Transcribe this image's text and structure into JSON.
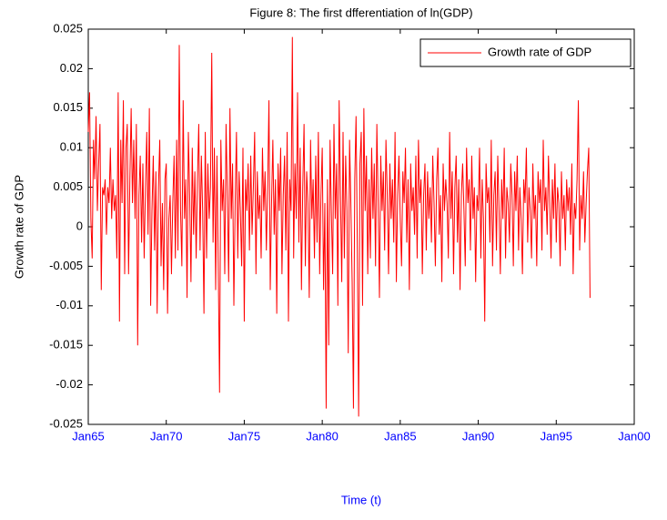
{
  "chart_data": {
    "type": "line",
    "title": "Figure 8: The first dfferentiation of ln(GDP)",
    "xlabel": "Time (t)",
    "ylabel": "Growth rate of GDP",
    "xlim": [
      "1965-01",
      "2000-01"
    ],
    "xticks": [
      {
        "value": "1965-01",
        "label": "Jan65"
      },
      {
        "value": "1970-01",
        "label": "Jan70"
      },
      {
        "value": "1975-01",
        "label": "Jan75"
      },
      {
        "value": "1980-01",
        "label": "Jan80"
      },
      {
        "value": "1985-01",
        "label": "Jan85"
      },
      {
        "value": "1990-01",
        "label": "Jan90"
      },
      {
        "value": "1995-01",
        "label": "Jan95"
      },
      {
        "value": "2000-01",
        "label": "Jan00"
      }
    ],
    "ylim": [
      -0.025,
      0.025
    ],
    "yticks": [
      -0.025,
      -0.02,
      -0.015,
      -0.01,
      -0.005,
      0,
      0.005,
      0.01,
      0.015,
      0.02,
      0.025
    ],
    "legend": "top-right",
    "x": [
      "1965-01",
      "1965-02",
      "1965-03",
      "1965-04",
      "1965-05",
      "1965-06",
      "1965-07",
      "1965-08",
      "1965-09",
      "1965-10",
      "1965-11",
      "1965-12",
      "1966-01",
      "1966-02",
      "1966-03",
      "1966-04",
      "1966-05",
      "1966-06",
      "1966-07",
      "1966-08",
      "1966-09",
      "1966-10",
      "1966-11",
      "1966-12",
      "1967-01",
      "1967-02",
      "1967-03",
      "1967-04",
      "1967-05",
      "1967-06",
      "1967-07",
      "1967-08",
      "1967-09",
      "1967-10",
      "1967-11",
      "1967-12",
      "1968-01",
      "1968-02",
      "1968-03",
      "1968-04",
      "1968-05",
      "1968-06",
      "1968-07",
      "1968-08",
      "1968-09",
      "1968-10",
      "1968-11",
      "1968-12",
      "1969-01",
      "1969-02",
      "1969-03",
      "1969-04",
      "1969-05",
      "1969-06",
      "1969-07",
      "1969-08",
      "1969-09",
      "1969-10",
      "1969-11",
      "1969-12",
      "1970-01",
      "1970-02",
      "1970-03",
      "1970-04",
      "1970-05",
      "1970-06",
      "1970-07",
      "1970-08",
      "1970-09",
      "1970-10",
      "1970-11",
      "1970-12",
      "1971-01",
      "1971-02",
      "1971-03",
      "1971-04",
      "1971-05",
      "1971-06",
      "1971-07",
      "1971-08",
      "1971-09",
      "1971-10",
      "1971-11",
      "1971-12",
      "1972-01",
      "1972-02",
      "1972-03",
      "1972-04",
      "1972-05",
      "1972-06",
      "1972-07",
      "1972-08",
      "1972-09",
      "1972-10",
      "1972-11",
      "1972-12",
      "1973-01",
      "1973-02",
      "1973-03",
      "1973-04",
      "1973-05",
      "1973-06",
      "1973-07",
      "1973-08",
      "1973-09",
      "1973-10",
      "1973-11",
      "1973-12",
      "1974-01",
      "1974-02",
      "1974-03",
      "1974-04",
      "1974-05",
      "1974-06",
      "1974-07",
      "1974-08",
      "1974-09",
      "1974-10",
      "1974-11",
      "1974-12",
      "1975-01",
      "1975-02",
      "1975-03",
      "1975-04",
      "1975-05",
      "1975-06",
      "1975-07",
      "1975-08",
      "1975-09",
      "1975-10",
      "1975-11",
      "1975-12",
      "1976-01",
      "1976-02",
      "1976-03",
      "1976-04",
      "1976-05",
      "1976-06",
      "1976-07",
      "1976-08",
      "1976-09",
      "1976-10",
      "1976-11",
      "1976-12",
      "1977-01",
      "1977-02",
      "1977-03",
      "1977-04",
      "1977-05",
      "1977-06",
      "1977-07",
      "1977-08",
      "1977-09",
      "1977-10",
      "1977-11",
      "1977-12",
      "1978-01",
      "1978-02",
      "1978-03",
      "1978-04",
      "1978-05",
      "1978-06",
      "1978-07",
      "1978-08",
      "1978-09",
      "1978-10",
      "1978-11",
      "1978-12",
      "1979-01",
      "1979-02",
      "1979-03",
      "1979-04",
      "1979-05",
      "1979-06",
      "1979-07",
      "1979-08",
      "1979-09",
      "1979-10",
      "1979-11",
      "1979-12",
      "1980-01",
      "1980-02",
      "1980-03",
      "1980-04",
      "1980-05",
      "1980-06",
      "1980-07",
      "1980-08",
      "1980-09",
      "1980-10",
      "1980-11",
      "1980-12",
      "1981-01",
      "1981-02",
      "1981-03",
      "1981-04",
      "1981-05",
      "1981-06",
      "1981-07",
      "1981-08",
      "1981-09",
      "1981-10",
      "1981-11",
      "1981-12",
      "1982-01",
      "1982-02",
      "1982-03",
      "1982-04",
      "1982-05",
      "1982-06",
      "1982-07",
      "1982-08",
      "1982-09",
      "1982-10",
      "1982-11",
      "1982-12",
      "1983-01",
      "1983-02",
      "1983-03",
      "1983-04",
      "1983-05",
      "1983-06",
      "1983-07",
      "1983-08",
      "1983-09",
      "1983-10",
      "1983-11",
      "1983-12",
      "1984-01",
      "1984-02",
      "1984-03",
      "1984-04",
      "1984-05",
      "1984-06",
      "1984-07",
      "1984-08",
      "1984-09",
      "1984-10",
      "1984-11",
      "1984-12",
      "1985-01",
      "1985-02",
      "1985-03",
      "1985-04",
      "1985-05",
      "1985-06",
      "1985-07",
      "1985-08",
      "1985-09",
      "1985-10",
      "1985-11",
      "1985-12",
      "1986-01",
      "1986-02",
      "1986-03",
      "1986-04",
      "1986-05",
      "1986-06",
      "1986-07",
      "1986-08",
      "1986-09",
      "1986-10",
      "1986-11",
      "1986-12",
      "1987-01",
      "1987-02",
      "1987-03",
      "1987-04",
      "1987-05",
      "1987-06",
      "1987-07",
      "1987-08",
      "1987-09",
      "1987-10",
      "1987-11",
      "1987-12",
      "1988-01",
      "1988-02",
      "1988-03",
      "1988-04",
      "1988-05",
      "1988-06",
      "1988-07",
      "1988-08",
      "1988-09",
      "1988-10",
      "1988-11",
      "1988-12",
      "1989-01",
      "1989-02",
      "1989-03",
      "1989-04",
      "1989-05",
      "1989-06",
      "1989-07",
      "1989-08",
      "1989-09",
      "1989-10",
      "1989-11",
      "1989-12",
      "1990-01",
      "1990-02",
      "1990-03",
      "1990-04",
      "1990-05",
      "1990-06",
      "1990-07",
      "1990-08",
      "1990-09",
      "1990-10",
      "1990-11",
      "1990-12",
      "1991-01",
      "1991-02",
      "1991-03",
      "1991-04",
      "1991-05",
      "1991-06",
      "1991-07",
      "1991-08",
      "1991-09",
      "1991-10",
      "1991-11",
      "1991-12",
      "1992-01",
      "1992-02",
      "1992-03",
      "1992-04",
      "1992-05",
      "1992-06",
      "1992-07",
      "1992-08",
      "1992-09",
      "1992-10",
      "1992-11",
      "1992-12",
      "1993-01",
      "1993-02",
      "1993-03",
      "1993-04",
      "1993-05",
      "1993-06",
      "1993-07",
      "1993-08",
      "1993-09",
      "1993-10",
      "1993-11",
      "1993-12",
      "1994-01",
      "1994-02",
      "1994-03",
      "1994-04",
      "1994-05",
      "1994-06",
      "1994-07",
      "1994-08",
      "1994-09",
      "1994-10",
      "1994-11",
      "1994-12",
      "1995-01",
      "1995-02",
      "1995-03",
      "1995-04",
      "1995-05",
      "1995-06",
      "1995-07",
      "1995-08",
      "1995-09",
      "1995-10",
      "1995-11",
      "1995-12",
      "1996-01",
      "1996-02",
      "1996-03",
      "1996-04",
      "1996-05",
      "1996-06",
      "1996-07",
      "1996-08",
      "1996-09",
      "1996-10",
      "1996-11",
      "1996-12",
      "1997-01",
      "1997-02",
      "1997-03"
    ],
    "series": [
      {
        "name": "Growth rate of GDP",
        "color": "#ff0000",
        "values": [
          0.012,
          0.017,
          0.001,
          -0.004,
          0.011,
          0.006,
          0.014,
          0.002,
          0.008,
          0.013,
          -0.008,
          0.005,
          0.004,
          0.006,
          -0.001,
          0.005,
          0.003,
          0.01,
          0.001,
          0.006,
          0.002,
          0.004,
          -0.004,
          0.017,
          -0.012,
          0.011,
          0.003,
          0.016,
          -0.006,
          0.01,
          0.013,
          -0.006,
          0.006,
          0.015,
          0.003,
          0.011,
          0.001,
          0.013,
          -0.015,
          0.004,
          0.009,
          -0.002,
          0.008,
          -0.004,
          0.005,
          0.012,
          -0.001,
          0.015,
          -0.01,
          0.002,
          0.009,
          -0.003,
          0.007,
          -0.011,
          0.005,
          0.011,
          -0.005,
          0.003,
          -0.008,
          0.006,
          0.008,
          -0.011,
          0.001,
          0.004,
          -0.006,
          0.003,
          0.009,
          -0.004,
          0.011,
          -0.003,
          0.023,
          0.002,
          -0.005,
          0.016,
          0.001,
          0.006,
          -0.009,
          0.012,
          0.004,
          -0.007,
          0.01,
          -0.001,
          0.007,
          -0.004,
          0.006,
          0.013,
          -0.003,
          0.009,
          0.002,
          -0.011,
          0.012,
          -0.004,
          0.008,
          0.001,
          0.005,
          0.022,
          -0.002,
          0.01,
          -0.008,
          0.009,
          -0.005,
          -0.021,
          0.011,
          0.002,
          0.006,
          -0.006,
          0.013,
          0.004,
          -0.007,
          0.015,
          0.001,
          0.008,
          -0.01,
          0.003,
          0.012,
          -0.004,
          0.007,
          0.002,
          -0.005,
          0.01,
          -0.012,
          0.006,
          0.002,
          0.008,
          -0.003,
          0.009,
          -0.001,
          0.005,
          0.012,
          -0.006,
          0.007,
          0.001,
          0.004,
          -0.004,
          0.01,
          0.002,
          0.007,
          -0.003,
          0.005,
          0.016,
          -0.008,
          0.003,
          0.011,
          -0.001,
          0.006,
          -0.011,
          0.008,
          0.002,
          0.01,
          -0.006,
          0.004,
          0.009,
          -0.003,
          0.012,
          -0.012,
          0.006,
          0.002,
          0.024,
          -0.004,
          0.008,
          0.001,
          0.017,
          -0.002,
          0.01,
          -0.008,
          0.005,
          0.013,
          -0.005,
          0.007,
          0.003,
          -0.009,
          0.011,
          0.001,
          0.006,
          -0.004,
          0.009,
          -0.002,
          0.012,
          -0.006,
          0.004,
          0.01,
          -0.008,
          0.003,
          -0.023,
          0.006,
          -0.015,
          0.011,
          0.002,
          -0.006,
          0.013,
          0.001,
          0.008,
          -0.01,
          0.016,
          0.004,
          -0.007,
          0.012,
          -0.004,
          0.009,
          0.002,
          -0.016,
          0.011,
          0.003,
          -0.007,
          -0.023,
          0.006,
          0.014,
          -0.003,
          -0.024,
          0.008,
          0.012,
          -0.01,
          0.015,
          0.002,
          0.009,
          -0.006,
          0.006,
          -0.004,
          0.01,
          0.001,
          0.008,
          -0.005,
          0.013,
          0.003,
          -0.009,
          0.009,
          0.002,
          0.007,
          -0.003,
          0.011,
          0.004,
          -0.006,
          0.008,
          0.001,
          0.006,
          -0.002,
          0.012,
          -0.007,
          0.004,
          0.009,
          0.001,
          -0.005,
          0.007,
          0.003,
          0.01,
          -0.002,
          0.006,
          -0.008,
          0.008,
          0.002,
          0.005,
          -0.001,
          0.009,
          -0.004,
          0.011,
          0.003,
          0.006,
          -0.006,
          0.004,
          0.008,
          -0.003,
          0.007,
          0.001,
          0.005,
          -0.002,
          0.009,
          0.003,
          -0.005,
          0.006,
          0.01,
          -0.001,
          0.004,
          -0.007,
          0.008,
          0.002,
          0.006,
          0.003,
          -0.004,
          0.012,
          0.001,
          0.007,
          -0.006,
          0.005,
          0.009,
          -0.002,
          0.006,
          -0.008,
          0.004,
          0.008,
          0.002,
          -0.005,
          0.01,
          0.003,
          0.006,
          -0.003,
          0.009,
          0.001,
          0.005,
          -0.007,
          0.004,
          0.002,
          0.01,
          -0.004,
          0.006,
          0.001,
          -0.012,
          0.008,
          0.003,
          0.005,
          -0.002,
          0.011,
          -0.005,
          0.004,
          0.007,
          -0.003,
          0.009,
          0.002,
          -0.006,
          0.006,
          0.001,
          0.01,
          -0.004,
          0.005,
          0.003,
          -0.002,
          0.008,
          0.004,
          -0.005,
          0.007,
          0.002,
          0.009,
          -0.003,
          0.005,
          0.001,
          -0.006,
          0.006,
          0.003,
          0.01,
          -0.002,
          0.005,
          0.002,
          -0.004,
          0.008,
          0.001,
          0.004,
          -0.005,
          0.007,
          0.003,
          0.006,
          -0.003,
          0.011,
          0.002,
          0.005,
          -0.001,
          0.009,
          0.003,
          -0.004,
          0.006,
          0.001,
          0.008,
          -0.002,
          0.005,
          0.003,
          -0.005,
          0.007,
          0.001,
          0.004,
          -0.003,
          0.006,
          0.002,
          0.005,
          -0.001,
          0.008,
          -0.006,
          0.003,
          0.001,
          0.006,
          0.016,
          -0.003,
          0.004,
          0.001,
          0.007,
          -0.002,
          0.003,
          0.007,
          0.01,
          -0.009
        ]
      }
    ]
  }
}
